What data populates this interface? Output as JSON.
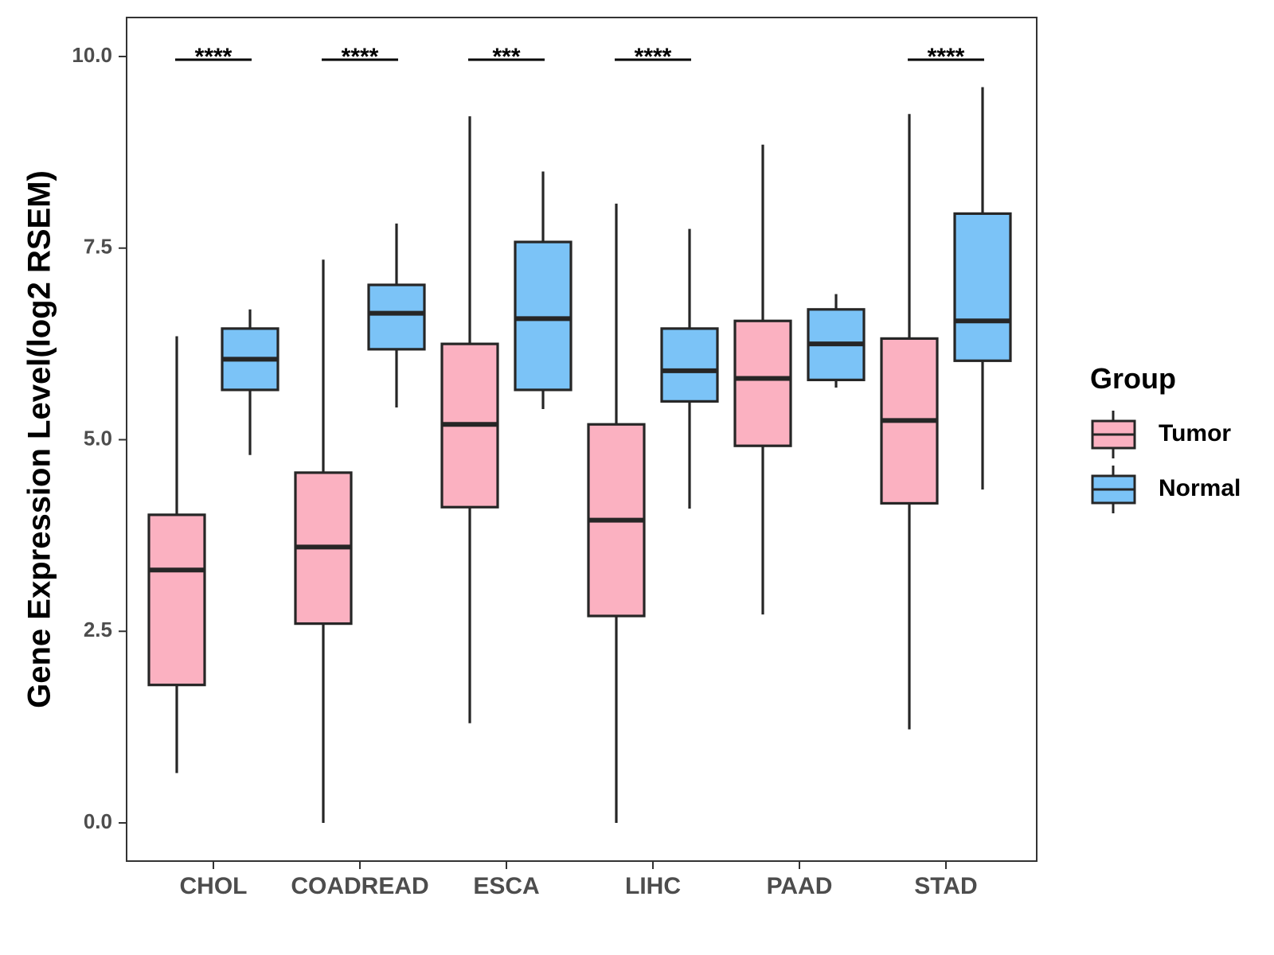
{
  "chart_data": {
    "type": "boxplot",
    "ylabel": "Gene Expression Level(log2 RSEM)",
    "xlabel": "",
    "ylim": [
      -0.5,
      10.5
    ],
    "yticks": [
      0.0,
      2.5,
      5.0,
      7.5,
      10.0
    ],
    "ytick_labels": [
      "0.0",
      "2.5",
      "5.0",
      "7.5",
      "10.0"
    ],
    "categories": [
      "CHOL",
      "COADREAD",
      "ESCA",
      "LIHC",
      "PAAD",
      "STAD"
    ],
    "legend": {
      "title": "Group",
      "position": "right",
      "entries": [
        {
          "name": "Tumor",
          "color": "#fbb1c1"
        },
        {
          "name": "Normal",
          "color": "#7bc3f7"
        }
      ]
    },
    "series": [
      {
        "name": "Tumor",
        "color": "#fbb1c1",
        "boxes": [
          {
            "category": "CHOL",
            "min": 0.65,
            "q1": 1.8,
            "median": 3.3,
            "q3": 4.02,
            "max": 6.35
          },
          {
            "category": "COADREAD",
            "min": 0.0,
            "q1": 2.6,
            "median": 3.6,
            "q3": 4.57,
            "max": 7.35
          },
          {
            "category": "ESCA",
            "min": 1.3,
            "q1": 4.12,
            "median": 5.2,
            "q3": 6.25,
            "max": 9.22
          },
          {
            "category": "LIHC",
            "min": 0.0,
            "q1": 2.7,
            "median": 3.95,
            "q3": 5.2,
            "max": 8.08
          },
          {
            "category": "PAAD",
            "min": 2.72,
            "q1": 4.92,
            "median": 5.8,
            "q3": 6.55,
            "max": 8.85
          },
          {
            "category": "STAD",
            "min": 1.22,
            "q1": 4.17,
            "median": 5.25,
            "q3": 6.32,
            "max": 9.25
          }
        ]
      },
      {
        "name": "Normal",
        "color": "#7bc3f7",
        "boxes": [
          {
            "category": "CHOL",
            "min": 4.8,
            "q1": 5.65,
            "median": 6.05,
            "q3": 6.45,
            "max": 6.7
          },
          {
            "category": "COADREAD",
            "min": 5.42,
            "q1": 6.18,
            "median": 6.65,
            "q3": 7.02,
            "max": 7.82
          },
          {
            "category": "ESCA",
            "min": 5.4,
            "q1": 5.65,
            "median": 6.58,
            "q3": 7.58,
            "max": 8.5
          },
          {
            "category": "LIHC",
            "min": 4.1,
            "q1": 5.5,
            "median": 5.9,
            "q3": 6.45,
            "max": 7.75
          },
          {
            "category": "PAAD",
            "min": 5.68,
            "q1": 5.78,
            "median": 6.25,
            "q3": 6.7,
            "max": 6.9
          },
          {
            "category": "STAD",
            "min": 4.35,
            "q1": 6.03,
            "median": 6.55,
            "q3": 7.95,
            "max": 9.6
          }
        ]
      }
    ],
    "significance": [
      {
        "category": "CHOL",
        "label": "****",
        "y": 10.0
      },
      {
        "category": "COADREAD",
        "label": "****",
        "y": 10.0
      },
      {
        "category": "ESCA",
        "label": "***",
        "y": 10.0
      },
      {
        "category": "LIHC",
        "label": "****",
        "y": 10.0
      },
      {
        "category": "STAD",
        "label": "****",
        "y": 10.0
      }
    ]
  }
}
